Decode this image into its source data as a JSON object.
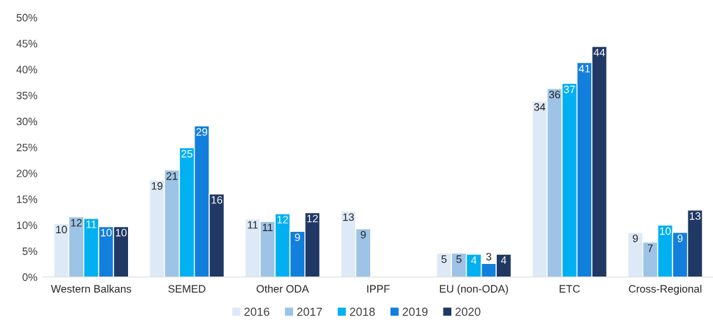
{
  "chart_data": {
    "type": "bar",
    "categories": [
      "Western Balkans",
      "SEMED",
      "Other ODA",
      "IPPF",
      "EU (non-ODA)",
      "ETC",
      "Cross-Regional"
    ],
    "series": [
      {
        "name": "2016",
        "color": "#dde9f6",
        "values": [
          10.3,
          18.7,
          11.2,
          12.7,
          4.6,
          33.9,
          8.6
        ],
        "value_labels": [
          "10",
          "19",
          "11",
          "13",
          "5",
          "34",
          "9"
        ]
      },
      {
        "name": "2017",
        "color": "#9dc3e6",
        "values": [
          11.6,
          20.6,
          10.7,
          9.3,
          4.6,
          36.3,
          6.7
        ],
        "value_labels": [
          "12",
          "21",
          "11",
          "9",
          "5",
          "36",
          "7"
        ]
      },
      {
        "name": "2018",
        "color": "#00b0f0",
        "values": [
          11.3,
          24.9,
          12.2,
          null,
          4.4,
          37.3,
          10.0
        ],
        "value_labels": [
          "11",
          "25",
          "12",
          null,
          "4",
          "37",
          "10"
        ]
      },
      {
        "name": "2019",
        "color": "#137fdc",
        "values": [
          9.7,
          29.1,
          8.8,
          null,
          2.6,
          41.3,
          8.6
        ],
        "value_labels": [
          "10",
          "29",
          "9",
          null,
          "3",
          "41",
          "9"
        ]
      },
      {
        "name": "2020",
        "color": "#203864",
        "values": [
          9.7,
          16.0,
          12.4,
          null,
          4.4,
          44.4,
          12.9
        ],
        "value_labels": [
          "10",
          "16",
          "12",
          null,
          "4",
          "44",
          "13"
        ]
      }
    ],
    "ylim": [
      0,
      50
    ],
    "yticks": [
      {
        "value": 0,
        "label": "0%"
      },
      {
        "value": 5,
        "label": "5%"
      },
      {
        "value": 10,
        "label": "10%"
      },
      {
        "value": 15,
        "label": "15%"
      },
      {
        "value": 20,
        "label": "20%"
      },
      {
        "value": 25,
        "label": "25%"
      },
      {
        "value": 30,
        "label": "30%"
      },
      {
        "value": 35,
        "label": "35%"
      },
      {
        "value": 40,
        "label": "40%"
      },
      {
        "value": 45,
        "label": "45%"
      },
      {
        "value": 50,
        "label": "50%"
      }
    ],
    "legend": "bottom"
  }
}
